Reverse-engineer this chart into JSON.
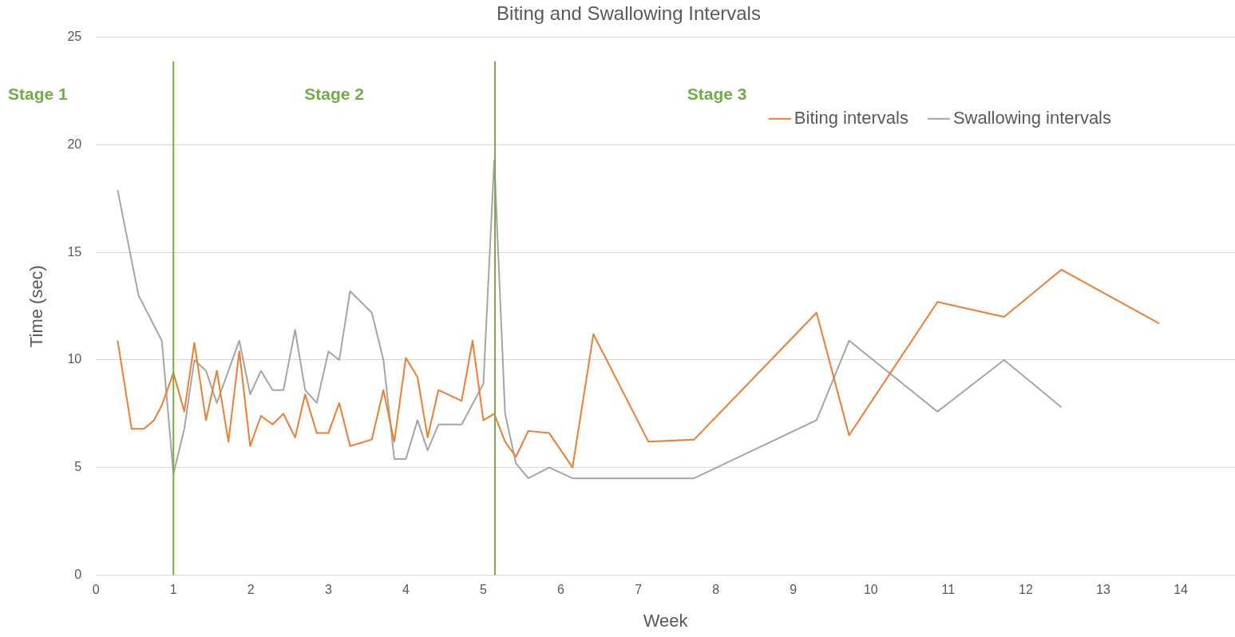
{
  "chart_data": {
    "type": "line",
    "title": "Biting and Swallowing Intervals",
    "xlabel": "Week",
    "ylabel": "Time (sec)",
    "xlim": [
      0,
      14.7
    ],
    "xticks": [
      0,
      1,
      2,
      3,
      4,
      5,
      6,
      7,
      8,
      9,
      10,
      11,
      12,
      13,
      14
    ],
    "ylim": [
      0,
      25
    ],
    "yticks": [
      0,
      5,
      10,
      15,
      20,
      25
    ],
    "grid": "y",
    "legend": "top right",
    "marker": "none",
    "line_style": "solid",
    "series": [
      {
        "name": "Biting intervals",
        "color": "#ed7d31",
        "x": [
          0.28,
          0.46,
          0.62,
          0.75,
          0.85,
          1.0,
          1.14,
          1.27,
          1.42,
          1.56,
          1.71,
          1.85,
          1.99,
          2.13,
          2.28,
          2.42,
          2.57,
          2.7,
          2.85,
          3.0,
          3.14,
          3.28,
          3.56,
          3.71,
          3.85,
          4.0,
          4.15,
          4.28,
          4.42,
          4.72,
          4.86,
          5.0,
          5.14,
          5.28,
          5.42,
          5.58,
          5.85,
          6.15,
          6.42,
          7.13,
          7.72,
          9.3,
          9.72,
          10.86,
          11.72,
          12.46,
          13.72
        ],
        "values": [
          10.9,
          6.8,
          6.8,
          7.2,
          7.9,
          9.4,
          7.6,
          10.8,
          7.2,
          9.5,
          6.2,
          10.4,
          6.0,
          7.4,
          7.0,
          7.5,
          6.4,
          8.4,
          6.6,
          6.6,
          8.0,
          6.0,
          6.3,
          8.6,
          6.2,
          10.1,
          9.2,
          6.4,
          8.6,
          8.1,
          10.9,
          7.2,
          7.5,
          6.2,
          5.5,
          6.7,
          6.6,
          5.0,
          11.2,
          6.2,
          6.3,
          12.2,
          6.5,
          12.7,
          12.0,
          14.2,
          11.7
        ]
      },
      {
        "name": "Swallowing intervals",
        "color": "#a5a5a5",
        "x": [
          0.28,
          0.55,
          0.85,
          1.0,
          1.14,
          1.27,
          1.42,
          1.56,
          1.85,
          1.99,
          2.13,
          2.28,
          2.42,
          2.57,
          2.7,
          2.85,
          3.0,
          3.14,
          3.28,
          3.56,
          3.71,
          3.85,
          4.0,
          4.15,
          4.28,
          4.42,
          4.72,
          5.0,
          5.14,
          5.28,
          5.42,
          5.58,
          5.85,
          6.15,
          7.72,
          9.3,
          9.72,
          10.86,
          11.72,
          12.46
        ],
        "values": [
          17.9,
          13.0,
          10.9,
          4.7,
          6.8,
          10.0,
          9.5,
          8.0,
          10.9,
          8.4,
          9.5,
          8.6,
          8.6,
          11.4,
          8.6,
          8.0,
          10.4,
          10.0,
          13.2,
          12.2,
          10.0,
          5.4,
          5.4,
          7.2,
          5.8,
          7.0,
          7.0,
          8.9,
          19.3,
          7.5,
          5.2,
          4.5,
          5.0,
          4.5,
          4.5,
          7.2,
          10.9,
          7.6,
          10.0,
          7.8
        ]
      }
    ],
    "ref_lines": [
      {
        "axis": "x",
        "value": 1,
        "color": "#70ad47"
      },
      {
        "axis": "x",
        "value": 5.15,
        "color": "#70ad47"
      }
    ],
    "annotations": [
      "Stage 1",
      "Stage 2",
      "Stage 3"
    ]
  }
}
